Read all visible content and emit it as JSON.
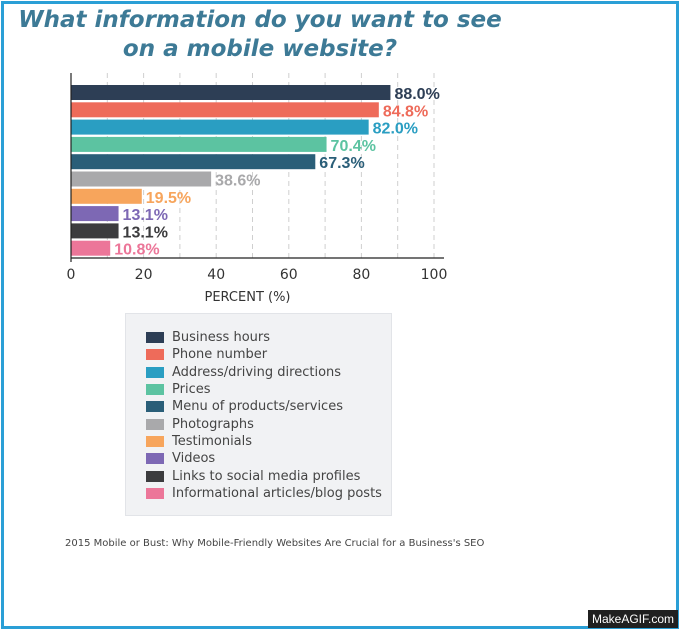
{
  "title": "What information do you want to see on a mobile website?",
  "source": "2015 Mobile or Bust: Why Mobile-Friendly Websites Are Crucial for a Business's SEO",
  "watermark": "MakeAGIF.com",
  "chart_data": {
    "type": "bar",
    "orientation": "horizontal",
    "title": "What information do you want to see on a mobile website?",
    "xlabel": "PERCENT (%)",
    "ylabel": "",
    "xlim": [
      0,
      100
    ],
    "xticks": [
      0,
      20,
      40,
      60,
      80,
      100
    ],
    "grid": true,
    "legend_position": "bottom",
    "categories": [
      "Business hours",
      "Phone number",
      "Address/driving directions",
      "Prices",
      "Menu of products/services",
      "Photographs",
      "Testimonials",
      "Videos",
      "Links to social media profiles",
      "Informational articles/blog posts"
    ],
    "values": [
      88.0,
      84.8,
      82.0,
      70.4,
      67.3,
      38.6,
      19.5,
      13.1,
      13.1,
      10.8
    ],
    "value_labels": [
      "88.0%",
      "84.8%",
      "82.0%",
      "70.4%",
      "67.3%",
      "38.6%",
      "19.5%",
      "13.1%",
      "13.1%",
      "10.8%"
    ],
    "colors": [
      "#2d3e55",
      "#ee6b5a",
      "#2a9ec2",
      "#5cc3a1",
      "#2a5e78",
      "#a9a9ab",
      "#f7a55c",
      "#7d68b4",
      "#3c3c3e",
      "#ec7699"
    ]
  }
}
